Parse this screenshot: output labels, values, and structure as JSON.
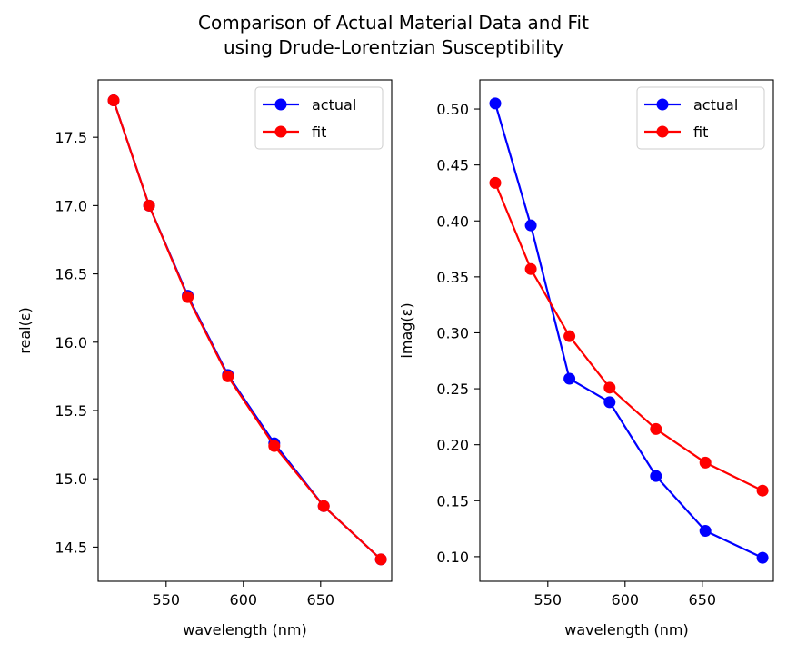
{
  "chart_data": {
    "title": [
      "Comparison of Actual Material Data and Fit",
      "using Drude-Lorentzian Susceptibility"
    ],
    "colors": {
      "actual": "#0000ff",
      "fit": "#ff0000"
    },
    "subplots": [
      {
        "type": "line",
        "xlabel": "wavelength (nm)",
        "ylabel": "real(ε)",
        "xlim": [
          506,
          696
        ],
        "ylim": [
          14.25,
          17.92
        ],
        "xticks": [
          550,
          600,
          650
        ],
        "yticks": [
          14.5,
          15.0,
          15.5,
          16.0,
          16.5,
          17.0,
          17.5
        ],
        "ytick_labels": [
          "14.5",
          "15.0",
          "15.5",
          "16.0",
          "16.5",
          "17.0",
          "17.5"
        ],
        "legend": "top-right",
        "x": [
          516,
          539,
          564,
          590,
          620,
          652,
          689
        ],
        "series": [
          {
            "name": "actual",
            "values": [
              17.77,
              17.0,
              16.34,
              15.76,
              15.26,
              14.8,
              14.41
            ]
          },
          {
            "name": "fit",
            "values": [
              17.77,
              17.0,
              16.33,
              15.75,
              15.24,
              14.8,
              14.41
            ]
          }
        ]
      },
      {
        "type": "line",
        "xlabel": "wavelength (nm)",
        "ylabel": "imag(ε)",
        "xlim": [
          506,
          696
        ],
        "ylim": [
          0.078,
          0.526
        ],
        "xticks": [
          550,
          600,
          650
        ],
        "yticks": [
          0.1,
          0.15,
          0.2,
          0.25,
          0.3,
          0.35,
          0.4,
          0.45,
          0.5
        ],
        "ytick_labels": [
          "0.10",
          "0.15",
          "0.20",
          "0.25",
          "0.30",
          "0.35",
          "0.40",
          "0.45",
          "0.50"
        ],
        "legend": "top-right",
        "x": [
          516,
          539,
          564,
          590,
          620,
          652,
          689
        ],
        "series": [
          {
            "name": "actual",
            "values": [
              0.505,
              0.396,
              0.259,
              0.238,
              0.172,
              0.123,
              0.099
            ]
          },
          {
            "name": "fit",
            "values": [
              0.434,
              0.357,
              0.297,
              0.251,
              0.214,
              0.184,
              0.159
            ]
          }
        ]
      }
    ]
  }
}
